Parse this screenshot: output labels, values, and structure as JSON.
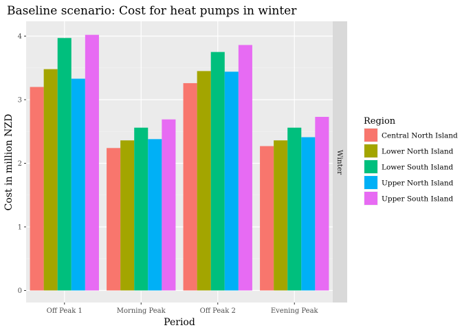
{
  "chart_data": {
    "type": "bar",
    "title": "Baseline scenario: Cost for heat pumps in winter",
    "xlabel": "Period",
    "ylabel": "Cost in million NZD",
    "ylim": [
      0,
      4.2
    ],
    "yticks": [
      0,
      1,
      2,
      3,
      4
    ],
    "categories": [
      "Off Peak 1",
      "Morning Peak",
      "Off Peak 2",
      "Evening Peak"
    ],
    "facet_label": "Winter",
    "legend_title": "Region",
    "legend_position": "right",
    "grid": true,
    "series": [
      {
        "name": "Central North Island",
        "color": "#F8766D",
        "values": [
          3.2,
          2.24,
          3.26,
          2.27
        ]
      },
      {
        "name": "Lower North Island",
        "color": "#A3A500",
        "values": [
          3.48,
          2.36,
          3.45,
          2.36
        ]
      },
      {
        "name": "Lower South Island",
        "color": "#00BF7D",
        "values": [
          3.97,
          2.56,
          3.75,
          2.56
        ]
      },
      {
        "name": "Upper North Island",
        "color": "#00B0F6",
        "values": [
          3.33,
          2.38,
          3.44,
          2.41
        ]
      },
      {
        "name": "Upper South Island",
        "color": "#E76BF3",
        "values": [
          4.02,
          2.69,
          3.86,
          2.73
        ]
      }
    ]
  }
}
